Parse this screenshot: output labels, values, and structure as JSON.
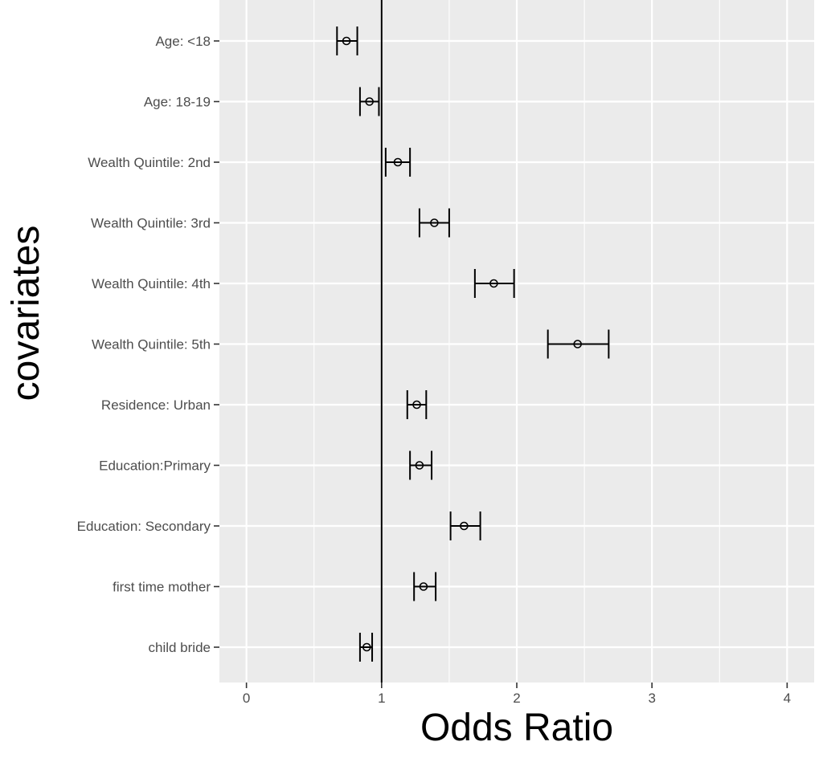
{
  "chart_data": {
    "type": "scatter",
    "xlabel": "Odds Ratio",
    "ylabel": "covariates",
    "xlim": [
      -0.2,
      4.2
    ],
    "x_ticks": [
      0,
      1,
      2,
      3,
      4
    ],
    "reference_line": 1,
    "grid": true,
    "colors": {
      "panel": "#ebebeb",
      "grid": "#ffffff",
      "marks": "#000000",
      "tick_text": "#4d4d4d"
    },
    "categories": [
      "Age: <18",
      "Age: 18-19",
      "Wealth Quintile: 2nd",
      "Wealth Quintile: 3rd",
      "Wealth Quintile: 4th",
      "Wealth Quintile: 5th",
      "Residence: Urban",
      "Education:Primary",
      "Education: Secondary",
      "first time mother",
      "child bride"
    ],
    "estimate": [
      0.74,
      0.91,
      1.12,
      1.39,
      1.83,
      2.45,
      1.26,
      1.28,
      1.61,
      1.31,
      0.89
    ],
    "lower": [
      0.67,
      0.84,
      1.03,
      1.28,
      1.69,
      2.23,
      1.19,
      1.21,
      1.51,
      1.24,
      0.84
    ],
    "upper": [
      0.82,
      0.98,
      1.21,
      1.5,
      1.98,
      2.68,
      1.33,
      1.37,
      1.73,
      1.4,
      0.93
    ]
  }
}
